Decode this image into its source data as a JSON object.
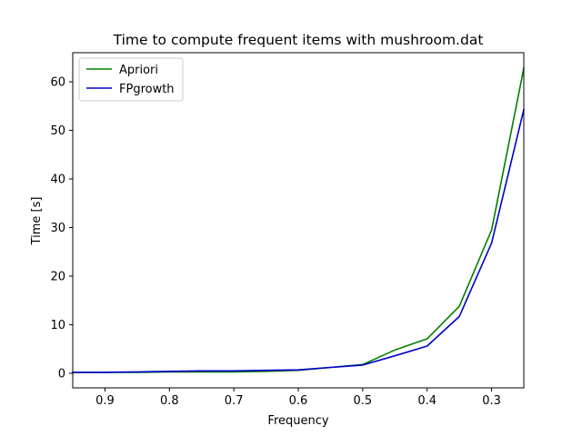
{
  "chart_data": {
    "type": "line",
    "title": "Time to compute frequent items with mushroom.dat",
    "xlabel": "Frequency",
    "ylabel": "Time [s]",
    "x_axis_inverted": true,
    "xlim": [
      0.95,
      0.25
    ],
    "ylim": [
      -3,
      66
    ],
    "xticks": [
      0.9,
      0.8,
      0.7,
      0.6,
      0.5,
      0.4,
      0.3
    ],
    "xtick_labels": [
      "0.9",
      "0.8",
      "0.7",
      "0.6",
      "0.5",
      "0.4",
      "0.3"
    ],
    "yticks": [
      0,
      10,
      20,
      30,
      40,
      50,
      60
    ],
    "ytick_labels": [
      "0",
      "10",
      "20",
      "30",
      "40",
      "50",
      "60"
    ],
    "legend_position": "top-left",
    "grid": false,
    "x": [
      0.95,
      0.9,
      0.85,
      0.8,
      0.75,
      0.7,
      0.65,
      0.6,
      0.55,
      0.5,
      0.45,
      0.4,
      0.35,
      0.3,
      0.25
    ],
    "series": [
      {
        "name": "Apriori",
        "color": "#008000",
        "values": [
          0.2,
          0.2,
          0.2,
          0.3,
          0.3,
          0.3,
          0.4,
          0.6,
          1.2,
          1.8,
          4.8,
          7.1,
          13.8,
          29.5,
          62.8
        ]
      },
      {
        "name": "FPgrowth",
        "color": "#0000cc",
        "values": [
          0.2,
          0.2,
          0.3,
          0.4,
          0.5,
          0.5,
          0.6,
          0.7,
          1.2,
          1.7,
          3.6,
          5.6,
          11.7,
          26.8,
          54.3
        ]
      }
    ]
  }
}
